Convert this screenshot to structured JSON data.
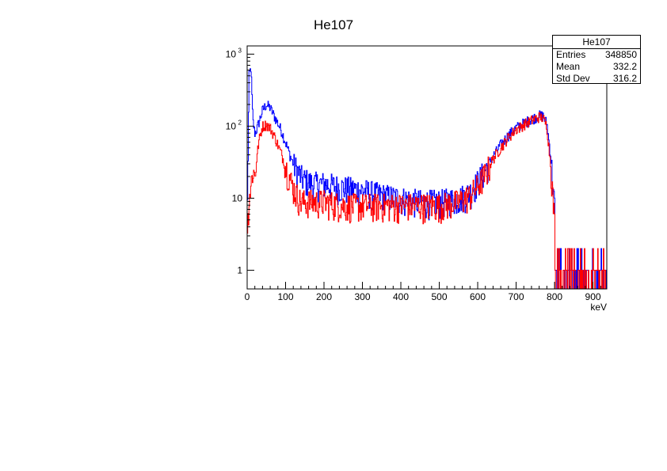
{
  "chart_data": {
    "type": "histogram",
    "title": "He107",
    "xlabel": "keV",
    "ylabel": "",
    "xlim": [
      0,
      936
    ],
    "ylim": [
      0.55,
      1300
    ],
    "yscale": "log",
    "grid": false,
    "x_ticks": [
      0,
      100,
      200,
      300,
      400,
      500,
      600,
      700,
      800,
      900
    ],
    "y_ticks": [
      {
        "value": 1,
        "label": "1"
      },
      {
        "value": 10,
        "label": "10"
      },
      {
        "value": 100,
        "label": "10^2"
      },
      {
        "value": 1000,
        "label": "10^3"
      }
    ],
    "series": [
      {
        "color": "#0000ff",
        "x": [
          0,
          5,
          10,
          15,
          20,
          25,
          30,
          40,
          50,
          60,
          70,
          80,
          90,
          100,
          110,
          120,
          130,
          140,
          150,
          170,
          200,
          250,
          300,
          350,
          400,
          450,
          500,
          550,
          580,
          600,
          620,
          640,
          660,
          680,
          700,
          720,
          740,
          760,
          770,
          780,
          790,
          800,
          810,
          830,
          850,
          870,
          900,
          930
        ],
        "values": [
          4,
          500,
          650,
          120,
          80,
          90,
          110,
          165,
          200,
          180,
          140,
          110,
          85,
          60,
          42,
          30,
          25,
          20,
          18,
          16,
          16,
          14,
          13,
          11,
          10,
          9,
          9,
          10,
          12,
          17,
          25,
          38,
          55,
          75,
          95,
          110,
          125,
          140,
          140,
          110,
          40,
          8,
          2,
          1.5,
          1.5,
          1.2,
          1.2,
          2
        ]
      },
      {
        "color": "#ff0000",
        "x": [
          0,
          5,
          10,
          15,
          20,
          25,
          30,
          40,
          50,
          60,
          70,
          80,
          90,
          100,
          110,
          120,
          130,
          140,
          150,
          170,
          200,
          250,
          300,
          350,
          400,
          450,
          500,
          550,
          580,
          600,
          620,
          640,
          660,
          680,
          700,
          720,
          740,
          760,
          770,
          780,
          790,
          800,
          810,
          830,
          850,
          870,
          900,
          930
        ],
        "values": [
          3,
          10,
          15,
          25,
          20,
          35,
          60,
          100,
          105,
          95,
          75,
          55,
          40,
          28,
          20,
          14,
          11,
          9,
          9,
          9,
          9,
          8,
          8,
          8,
          8,
          8,
          8,
          9,
          11,
          15,
          22,
          35,
          50,
          70,
          90,
          105,
          120,
          135,
          130,
          100,
          30,
          5,
          1.2,
          1,
          1,
          1,
          1,
          1
        ]
      }
    ],
    "stats_box": {
      "title": "He107",
      "rows": [
        {
          "label": "Entries",
          "value": "348850"
        },
        {
          "label": "Mean",
          "value": "332.2"
        },
        {
          "label": "Std Dev",
          "value": "316.2"
        }
      ]
    }
  }
}
